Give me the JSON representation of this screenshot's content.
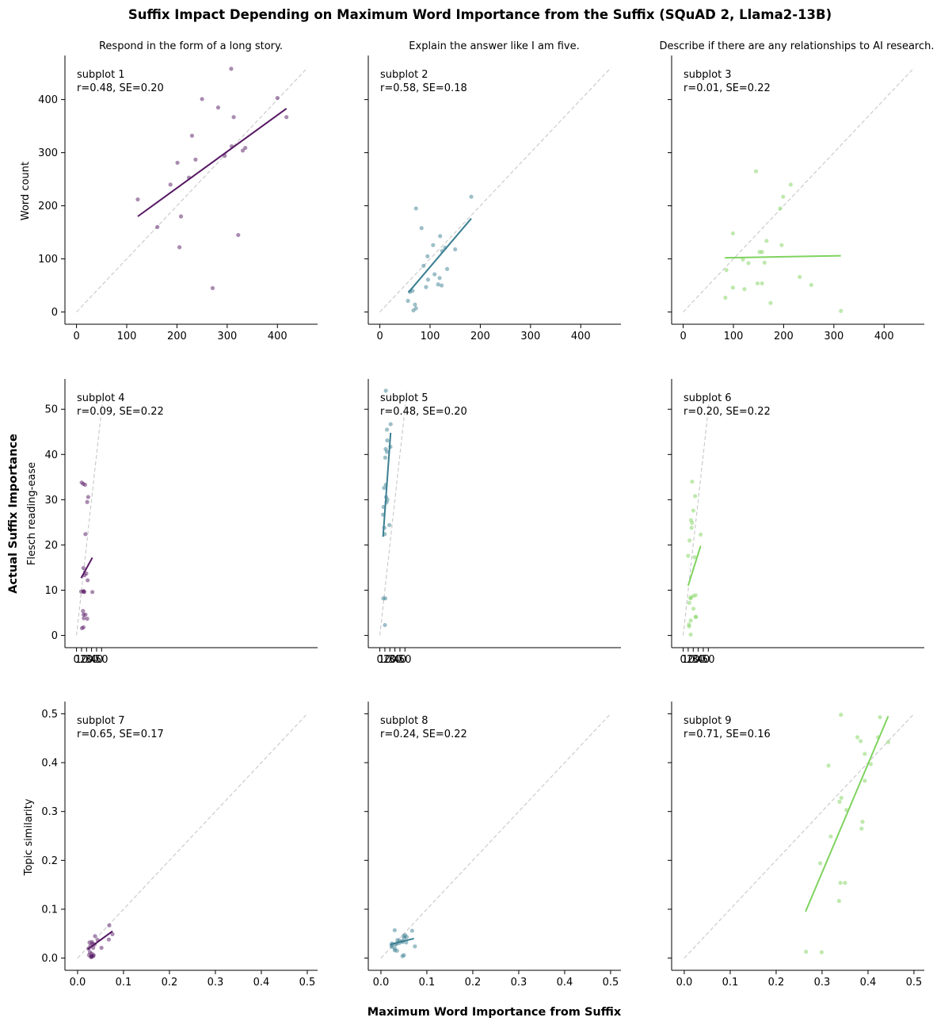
{
  "chart_data": {
    "type": "scatter",
    "title": "Suffix Impact Depending on Maximum Word Importance from the Suffix (SQuAD 2, Llama2-13B)",
    "xlabel": "Maximum Word Importance from Suffix",
    "ylabel": "Actual Suffix Importance",
    "columns": [
      {
        "title": "Respond in the form of a long story.",
        "color": "#561763"
      },
      {
        "title": "Explain the answer like I am five.",
        "color": "#3b7f92"
      },
      {
        "title": "Describe if there are any relationships to AI research.",
        "color": "#7fd35f"
      }
    ],
    "rows": [
      {
        "ylabel": "Word count",
        "lim": [
          0,
          460
        ],
        "ticks": [
          0,
          100,
          200,
          300,
          400
        ],
        "tick_labels": [
          "0",
          "100",
          "200",
          "300",
          "400"
        ]
      },
      {
        "ylabel": "Flesch reading-ease",
        "lim": [
          0,
          54
        ],
        "ticks": [
          0,
          10,
          20,
          30,
          40,
          50
        ],
        "tick_labels": [
          "0",
          "10",
          "20",
          "30",
          "40",
          "50"
        ]
      },
      {
        "ylabel": "Topic similarity",
        "lim": [
          0,
          0.5
        ],
        "ticks": [
          0,
          0.1,
          0.2,
          0.3,
          0.4,
          0.5
        ],
        "tick_labels": [
          "0.0",
          "0.1",
          "0.2",
          "0.3",
          "0.4",
          "0.5"
        ]
      }
    ],
    "subplots": [
      {
        "label": "subplot 1",
        "stats": "r=0.48, SE=0.20",
        "row": 0,
        "col": 0,
        "fit": [
          [
            122,
            180
          ],
          [
            418,
            383
          ]
        ],
        "points": [
          [
            122,
            212
          ],
          [
            308,
            458
          ],
          [
            250,
            401
          ],
          [
            400,
            403
          ],
          [
            282,
            385
          ],
          [
            313,
            367
          ],
          [
            418,
            367
          ],
          [
            230,
            332
          ],
          [
            336,
            309
          ],
          [
            309,
            312
          ],
          [
            331,
            304
          ],
          [
            295,
            294
          ],
          [
            237,
            287
          ],
          [
            201,
            281
          ],
          [
            224,
            253
          ],
          [
            187,
            240
          ],
          [
            208,
            180
          ],
          [
            161,
            160
          ],
          [
            205,
            122
          ],
          [
            322,
            145
          ],
          [
            271,
            45
          ]
        ]
      },
      {
        "label": "subplot 2",
        "stats": "r=0.58, SE=0.18",
        "row": 0,
        "col": 1,
        "fit": [
          [
            57,
            37
          ],
          [
            182,
            176
          ]
        ],
        "points": [
          [
            182,
            217
          ],
          [
            72,
            195
          ],
          [
            83,
            158
          ],
          [
            120,
            143
          ],
          [
            106,
            126
          ],
          [
            130,
            121
          ],
          [
            150,
            118
          ],
          [
            124,
            115
          ],
          [
            95,
            105
          ],
          [
            87,
            87
          ],
          [
            134,
            81
          ],
          [
            109,
            71
          ],
          [
            119,
            64
          ],
          [
            96,
            61
          ],
          [
            92,
            47
          ],
          [
            116,
            52
          ],
          [
            123,
            50
          ],
          [
            65,
            40
          ],
          [
            60,
            38
          ],
          [
            56,
            21
          ],
          [
            70,
            14
          ],
          [
            72,
            7
          ],
          [
            67,
            3
          ]
        ]
      },
      {
        "label": "subplot 3",
        "stats": "r=0.01, SE=0.22",
        "row": 0,
        "col": 2,
        "fit": [
          [
            83,
            102
          ],
          [
            314,
            106
          ]
        ],
        "points": [
          [
            145,
            265
          ],
          [
            214,
            240
          ],
          [
            199,
            217
          ],
          [
            193,
            195
          ],
          [
            99,
            148
          ],
          [
            166,
            134
          ],
          [
            196,
            126
          ],
          [
            152,
            113
          ],
          [
            157,
            113
          ],
          [
            162,
            93
          ],
          [
            119,
            99
          ],
          [
            130,
            92
          ],
          [
            86,
            79
          ],
          [
            232,
            66
          ],
          [
            148,
            54
          ],
          [
            157,
            54
          ],
          [
            255,
            51
          ],
          [
            99,
            46
          ],
          [
            122,
            43
          ],
          [
            84,
            27
          ],
          [
            174,
            17
          ],
          [
            314,
            2
          ]
        ]
      },
      {
        "label": "subplot 4",
        "stats": "r=0.09, SE=0.22",
        "row": 1,
        "col": 0,
        "fit": [
          [
            9.3,
            12.7
          ],
          [
            31.6,
            17.2
          ]
        ],
        "points": [
          [
            10.3,
            33.8
          ],
          [
            13.5,
            33.5
          ],
          [
            17.1,
            33.3
          ],
          [
            23.3,
            30.6
          ],
          [
            21.3,
            29.5
          ],
          [
            17.8,
            22.4
          ],
          [
            13.7,
            14.9
          ],
          [
            19.5,
            13.7
          ],
          [
            16.1,
            13.3
          ],
          [
            22.2,
            12.2
          ],
          [
            9.3,
            9.7
          ],
          [
            13.9,
            9.7
          ],
          [
            14.2,
            9.8
          ],
          [
            15.7,
            9.6
          ],
          [
            31.6,
            9.6
          ],
          [
            13.0,
            5.4
          ],
          [
            14.1,
            4.6
          ],
          [
            17.9,
            4.6
          ],
          [
            21.4,
            3.7
          ],
          [
            14.5,
            3.8
          ],
          [
            10.8,
            1.6
          ],
          [
            14.0,
            1.8
          ]
        ]
      },
      {
        "label": "subplot 5",
        "stats": "r=0.48, SE=0.20",
        "row": 1,
        "col": 1,
        "fit": [
          [
            6.4,
            21.8
          ],
          [
            21.5,
            44.8
          ]
        ],
        "points": [
          [
            11.9,
            54.1
          ],
          [
            21.5,
            46.7
          ],
          [
            14.2,
            45.5
          ],
          [
            14.8,
            43.1
          ],
          [
            21.1,
            41.7
          ],
          [
            11.6,
            41.2
          ],
          [
            14.0,
            40.6
          ],
          [
            10.7,
            39.3
          ],
          [
            11.9,
            33.3
          ],
          [
            8.4,
            32.6
          ],
          [
            12.6,
            30.6
          ],
          [
            15.0,
            30.0
          ],
          [
            13.3,
            29.4
          ],
          [
            7.5,
            28.4
          ],
          [
            6.4,
            26.7
          ],
          [
            19.0,
            24.4
          ],
          [
            8.9,
            23.8
          ],
          [
            9.6,
            22.4
          ],
          [
            6.9,
            8.2
          ],
          [
            10.9,
            8.2
          ],
          [
            10.1,
            2.3
          ]
        ]
      },
      {
        "label": "subplot 6",
        "stats": "r=0.20, SE=0.22",
        "row": 1,
        "col": 2,
        "fit": [
          [
            9.9,
            11.0
          ],
          [
            34.8,
            19.8
          ]
        ],
        "points": [
          [
            17.8,
            34.0
          ],
          [
            23.7,
            30.8
          ],
          [
            20.2,
            27.6
          ],
          [
            15.5,
            25.5
          ],
          [
            17.6,
            24.9
          ],
          [
            16.6,
            23.8
          ],
          [
            34.8,
            22.3
          ],
          [
            12.6,
            21.0
          ],
          [
            9.9,
            17.6
          ],
          [
            22.6,
            17.3
          ],
          [
            14.7,
            8.2
          ],
          [
            20.2,
            8.7
          ],
          [
            24.6,
            8.9
          ],
          [
            12.2,
            7.2
          ],
          [
            14.8,
            8.4
          ],
          [
            20.5,
            5.9
          ],
          [
            24.7,
            4.1
          ],
          [
            25.6,
            4.1
          ],
          [
            15.0,
            3.3
          ],
          [
            11.5,
            2.4
          ],
          [
            11.8,
            2.0
          ],
          [
            15.0,
            0.2
          ]
        ]
      },
      {
        "label": "subplot 7",
        "stats": "r=0.65, SE=0.17",
        "row": 2,
        "col": 0,
        "fit": [
          [
            0.022,
            0.018
          ],
          [
            0.076,
            0.055
          ]
        ],
        "points": [
          [
            0.069,
            0.067
          ],
          [
            0.076,
            0.049
          ],
          [
            0.038,
            0.045
          ],
          [
            0.044,
            0.037
          ],
          [
            0.068,
            0.038
          ],
          [
            0.031,
            0.033
          ],
          [
            0.026,
            0.032
          ],
          [
            0.033,
            0.029
          ],
          [
            0.037,
            0.028
          ],
          [
            0.028,
            0.025
          ],
          [
            0.052,
            0.021
          ],
          [
            0.034,
            0.021
          ],
          [
            0.024,
            0.019
          ],
          [
            0.027,
            0.012
          ],
          [
            0.031,
            0.009
          ],
          [
            0.025,
            0.006
          ],
          [
            0.035,
            0.006
          ],
          [
            0.029,
            0.003
          ],
          [
            0.034,
            0.004
          ],
          [
            0.03,
            0.002
          ],
          [
            0.031,
            0.004
          ]
        ]
      },
      {
        "label": "subplot 8",
        "stats": "r=0.24, SE=0.22",
        "row": 2,
        "col": 1,
        "fit": [
          [
            0.02,
            0.028
          ],
          [
            0.072,
            0.04
          ]
        ],
        "points": [
          [
            0.03,
            0.057
          ],
          [
            0.068,
            0.056
          ],
          [
            0.053,
            0.047
          ],
          [
            0.049,
            0.045
          ],
          [
            0.056,
            0.043
          ],
          [
            0.051,
            0.041
          ],
          [
            0.036,
            0.037
          ],
          [
            0.04,
            0.035
          ],
          [
            0.046,
            0.035
          ],
          [
            0.047,
            0.033
          ],
          [
            0.055,
            0.032
          ],
          [
            0.04,
            0.031
          ],
          [
            0.024,
            0.03
          ],
          [
            0.034,
            0.029
          ],
          [
            0.031,
            0.028
          ],
          [
            0.023,
            0.026
          ],
          [
            0.074,
            0.024
          ],
          [
            0.024,
            0.023
          ],
          [
            0.03,
            0.02
          ],
          [
            0.03,
            0.016
          ],
          [
            0.035,
            0.015
          ],
          [
            0.05,
            0.006
          ],
          [
            0.047,
            0.004
          ]
        ]
      },
      {
        "label": "subplot 9",
        "stats": "r=0.71, SE=0.16",
        "row": 2,
        "col": 2,
        "fit": [
          [
            0.264,
            0.095
          ],
          [
            0.444,
            0.495
          ]
        ],
        "points": [
          [
            0.341,
            0.498
          ],
          [
            0.426,
            0.493
          ],
          [
            0.377,
            0.452
          ],
          [
            0.422,
            0.452
          ],
          [
            0.384,
            0.444
          ],
          [
            0.444,
            0.442
          ],
          [
            0.393,
            0.418
          ],
          [
            0.406,
            0.397
          ],
          [
            0.314,
            0.394
          ],
          [
            0.393,
            0.363
          ],
          [
            0.353,
            0.303
          ],
          [
            0.342,
            0.328
          ],
          [
            0.338,
            0.32
          ],
          [
            0.388,
            0.279
          ],
          [
            0.386,
            0.265
          ],
          [
            0.319,
            0.249
          ],
          [
            0.296,
            0.194
          ],
          [
            0.34,
            0.154
          ],
          [
            0.35,
            0.154
          ],
          [
            0.337,
            0.117
          ],
          [
            0.265,
            0.013
          ],
          [
            0.299,
            0.012
          ]
        ]
      }
    ]
  }
}
